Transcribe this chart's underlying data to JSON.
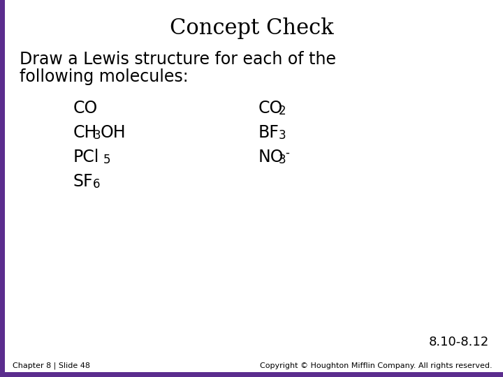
{
  "title": "Concept Check",
  "subtitle_line1": "Draw a Lewis structure for each of the",
  "subtitle_line2": "following molecules:",
  "footer_left": "Chapter 8 | Slide 48",
  "footer_right": "Copyright © Houghton Mifflin Company. All rights reserved.",
  "page_ref": "8.10-8.12",
  "bg_color": "#ffffff",
  "border_color": "#5b2d8e",
  "title_fontsize": 22,
  "body_fontsize": 17,
  "sub_fontsize": 12,
  "sup_fontsize": 12,
  "footer_fontsize": 8,
  "pageref_fontsize": 13
}
